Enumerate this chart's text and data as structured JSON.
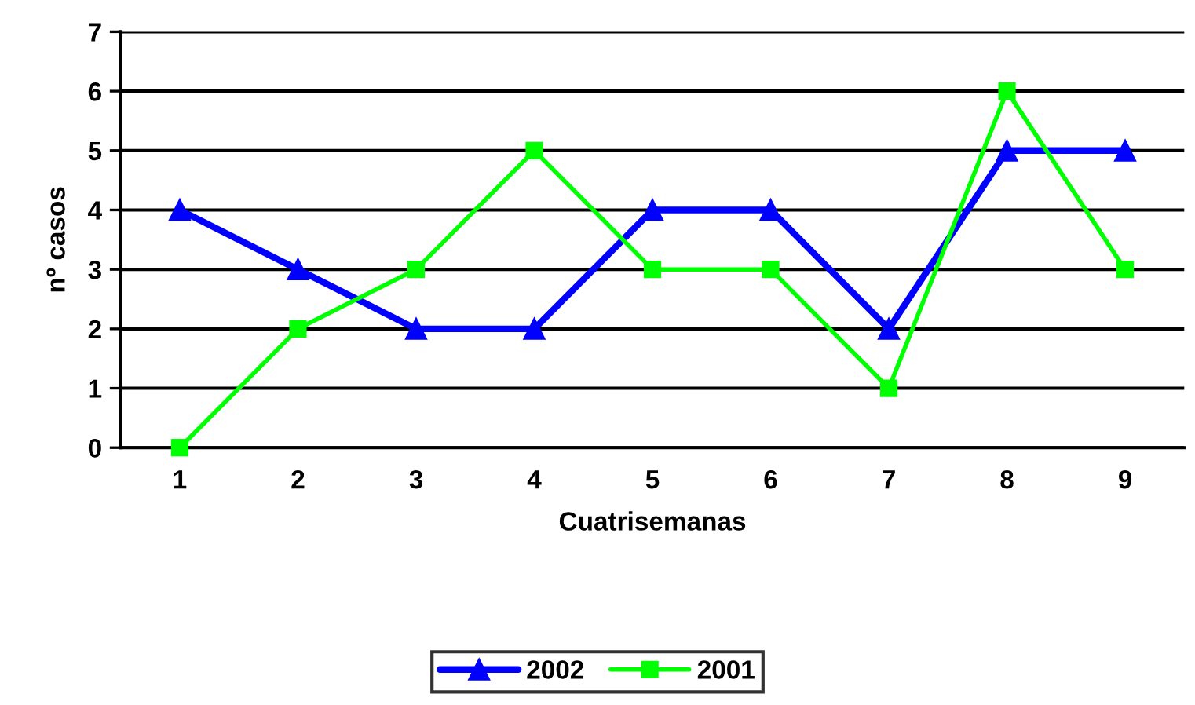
{
  "chart_data": {
    "type": "line",
    "xlabel": "Cuatrisemanas",
    "ylabel": "nº casos",
    "categories": [
      "1",
      "2",
      "3",
      "4",
      "5",
      "6",
      "7",
      "8",
      "9"
    ],
    "series": [
      {
        "name": "2002",
        "color": "#0000ff",
        "marker": "triangle",
        "values": [
          4,
          3,
          2,
          2,
          4,
          4,
          2,
          5,
          5
        ]
      },
      {
        "name": "2001",
        "color": "#00ff00",
        "marker": "square",
        "values": [
          0,
          2,
          3,
          5,
          3,
          3,
          1,
          6,
          3
        ]
      }
    ],
    "ylim": [
      0,
      7
    ],
    "yticks": [
      0,
      1,
      2,
      3,
      4,
      5,
      6,
      7
    ],
    "grid": "y",
    "legend": "bottom",
    "line_style": "solid"
  }
}
